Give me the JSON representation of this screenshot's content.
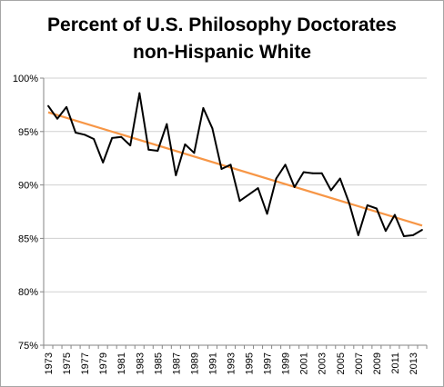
{
  "chart_data": {
    "type": "line",
    "title_lines": [
      "Percent of U.S. Philosophy Doctorates",
      "non-Hispanic White"
    ],
    "xlabel": "",
    "ylabel": "",
    "ylim": [
      75,
      100
    ],
    "y_ticks": [
      75,
      80,
      85,
      90,
      95,
      100
    ],
    "y_tick_labels": [
      "75%",
      "80%",
      "85%",
      "90%",
      "95%",
      "100%"
    ],
    "x": [
      1973,
      1974,
      1975,
      1976,
      1977,
      1978,
      1979,
      1980,
      1981,
      1982,
      1983,
      1984,
      1985,
      1986,
      1987,
      1988,
      1989,
      1990,
      1991,
      1992,
      1993,
      1994,
      1995,
      1996,
      1997,
      1998,
      1999,
      2000,
      2001,
      2002,
      2003,
      2004,
      2005,
      2006,
      2007,
      2008,
      2009,
      2010,
      2011,
      2012,
      2013,
      2014
    ],
    "x_tick_labels": [
      "1973",
      "1975",
      "1977",
      "1979",
      "1981",
      "1983",
      "1985",
      "1987",
      "1989",
      "1991",
      "1993",
      "1995",
      "1997",
      "1999",
      "2001",
      "2003",
      "2005",
      "2007",
      "2009",
      "2011",
      "2013"
    ],
    "grid": "horizontal",
    "legend": "none",
    "series": [
      {
        "color": "#000000",
        "values": [
          97.4,
          96.2,
          97.3,
          94.9,
          94.7,
          94.3,
          92.1,
          94.4,
          94.5,
          93.7,
          98.6,
          93.3,
          93.2,
          95.7,
          90.9,
          93.8,
          93.0,
          97.2,
          95.3,
          91.5,
          91.9,
          88.5,
          89.1,
          89.7,
          87.3,
          90.6,
          91.9,
          89.8,
          91.2,
          91.1,
          91.1,
          89.5,
          90.6,
          88.3,
          85.3,
          88.1,
          87.8,
          85.7,
          87.2,
          85.2,
          85.3,
          85.8
        ]
      }
    ],
    "trendline": {
      "color": "#f79646",
      "start": [
        1973,
        96.8
      ],
      "end": [
        2014,
        86.2
      ]
    }
  }
}
